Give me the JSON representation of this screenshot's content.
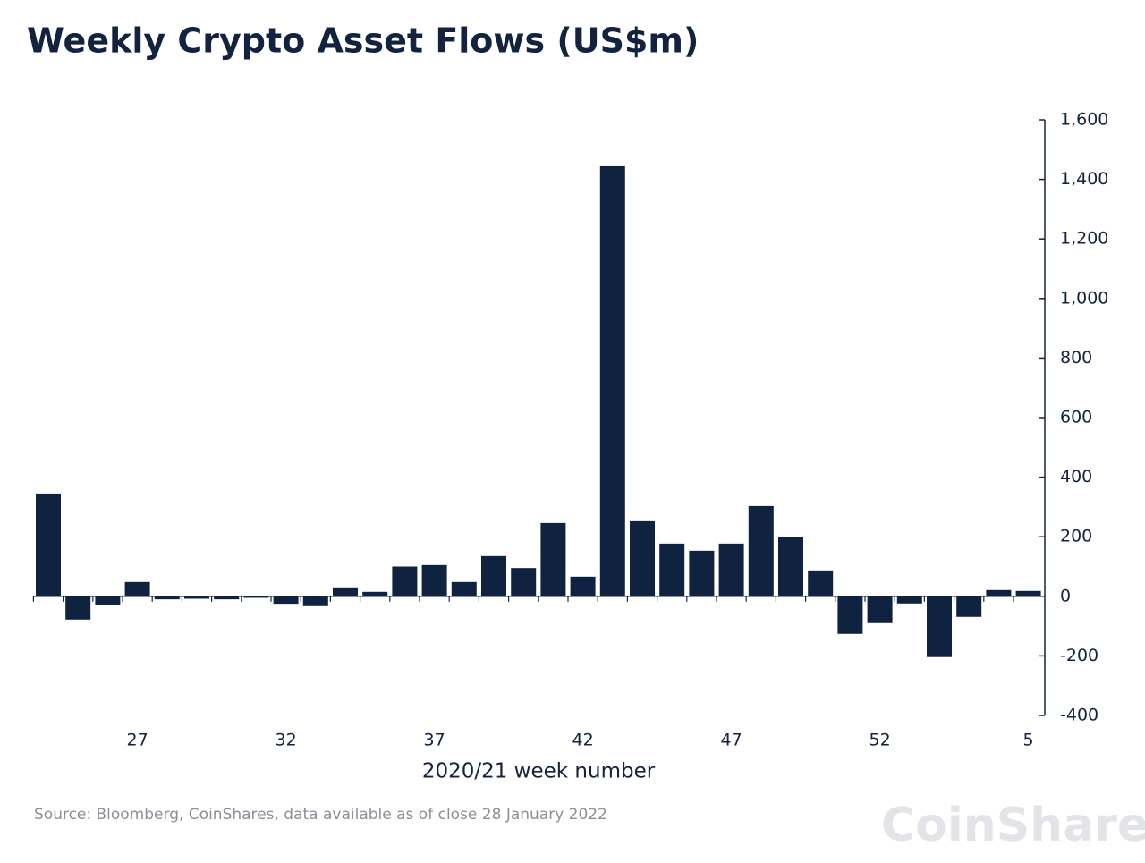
{
  "chart_data": {
    "type": "bar",
    "title": "Weekly Crypto Asset Flows (US$m)",
    "x_label": "2020/21 week number",
    "source": "Source: Bloomberg, CoinShares, data available as of close 28 January 2022",
    "logo": "CoinShares",
    "color": "#0f2240",
    "categories": [
      null,
      null,
      null,
      "27",
      null,
      null,
      null,
      null,
      "32",
      null,
      null,
      null,
      null,
      "37",
      null,
      null,
      null,
      null,
      "42",
      null,
      null,
      null,
      null,
      "47",
      null,
      null,
      null,
      null,
      "52",
      null,
      null,
      null,
      null,
      "5"
    ],
    "values": [
      345,
      -78,
      -30,
      48,
      -10,
      -8,
      -10,
      -5,
      -25,
      -33,
      30,
      15,
      100,
      105,
      48,
      135,
      95,
      246,
      66,
      1444,
      252,
      177,
      153,
      177,
      303,
      198,
      87,
      -126,
      -90,
      -24,
      -204,
      -69,
      21,
      18
    ],
    "ylim": [
      -400,
      1600
    ],
    "yticks": [
      {
        "value": -400,
        "label": "-400"
      },
      {
        "value": -200,
        "label": "-200"
      },
      0,
      200,
      400,
      600,
      800,
      {
        "value": 1000,
        "label": "1,000"
      },
      {
        "value": 1200,
        "label": "1,200"
      },
      {
        "value": 1400,
        "label": "1,400"
      },
      {
        "value": 1600,
        "label": "1,600"
      }
    ],
    "y_axis_side": "right"
  }
}
